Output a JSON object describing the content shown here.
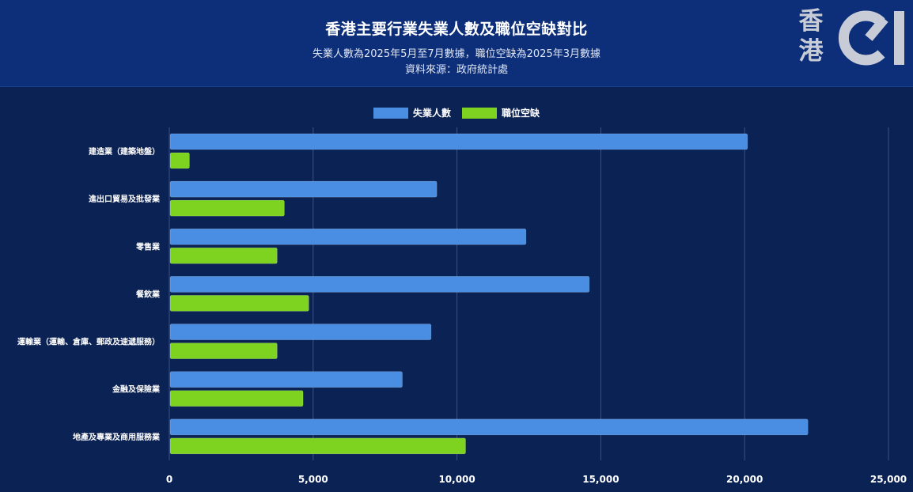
{
  "header": {
    "title": "香港主要行業失業人數及職位空缺對比",
    "subtitle_line1": "失業人數為2025年5月至7月數據，職位空缺為2025年3月數據",
    "subtitle_line2": "資料來源：政府統計處"
  },
  "logo": {
    "text_top": "香",
    "text_bottom": "港",
    "mark": "01",
    "color": "#c7ccd6"
  },
  "colors": {
    "header_bg": "#0d2f7a",
    "plot_bg": "#0b2254",
    "unemployed": "#4a8ee3",
    "vacancies": "#7ed321",
    "grid": "#3a5287"
  },
  "chart_data": {
    "type": "bar",
    "orientation": "horizontal",
    "categories": [
      "建造業（建築地盤）",
      "進出口貿易及批發業",
      "零售業",
      "餐飲業",
      "運輸業（運輸、倉庫、郵政及速遞服務）",
      "金融及保險業",
      "地產及專業及商用服務業"
    ],
    "series": [
      {
        "name": "失業人數",
        "values": [
          20100,
          9300,
          12400,
          14600,
          9100,
          8100,
          22200
        ]
      },
      {
        "name": "職位空缺",
        "values": [
          700,
          4000,
          3750,
          4850,
          3750,
          4650,
          10300
        ]
      }
    ],
    "xlim": [
      0,
      25000
    ],
    "x_ticks": [
      0,
      5000,
      10000,
      15000,
      20000,
      25000
    ],
    "x_tick_labels": [
      "0",
      "5,000",
      "10,000",
      "15,000",
      "20,000",
      "25,000"
    ],
    "grid": true,
    "legend_position": "top-center"
  }
}
